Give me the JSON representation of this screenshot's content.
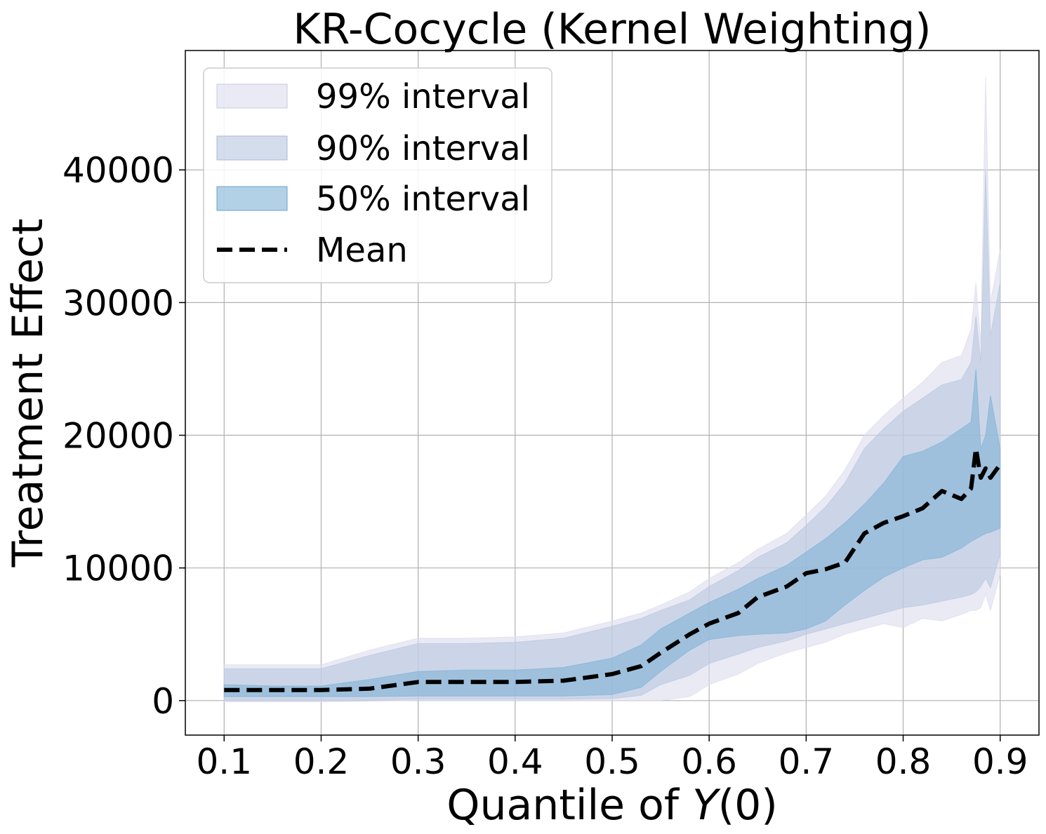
{
  "chart_data": {
    "type": "area",
    "title": "KR-Cocycle (Kernel Weighting)",
    "xlabel_text": "Quantile of ",
    "xlabel_var": "Y",
    "xlabel_suffix": "(0)",
    "ylabel": "Treatment Effect",
    "xlim": [
      0.06,
      0.94
    ],
    "ylim": [
      -2600,
      49000
    ],
    "grid": true,
    "legend_position": "top-left",
    "x_ticks": [
      0.1,
      0.2,
      0.3,
      0.4,
      0.5,
      0.6,
      0.7,
      0.8,
      0.9
    ],
    "x_tick_labels": [
      "0.1",
      "0.2",
      "0.3",
      "0.4",
      "0.5",
      "0.6",
      "0.7",
      "0.8",
      "0.9"
    ],
    "y_ticks": [
      0,
      10000,
      20000,
      30000,
      40000
    ],
    "y_tick_labels": [
      "0",
      "10000",
      "20000",
      "30000",
      "40000"
    ],
    "x": [
      0.1,
      0.15,
      0.2,
      0.25,
      0.3,
      0.35,
      0.4,
      0.45,
      0.5,
      0.53,
      0.55,
      0.58,
      0.6,
      0.63,
      0.65,
      0.68,
      0.7,
      0.72,
      0.74,
      0.76,
      0.78,
      0.8,
      0.82,
      0.84,
      0.86,
      0.87,
      0.875,
      0.88,
      0.885,
      0.89,
      0.9
    ],
    "series": [
      {
        "name": "99% interval",
        "color": "#dcdcee",
        "opacity": 0.6,
        "lower": [
          -100,
          -100,
          -100,
          -50,
          0,
          0,
          0,
          0,
          0,
          0,
          0,
          300,
          1200,
          2000,
          2800,
          3600,
          4000,
          4400,
          5000,
          5400,
          5800,
          5500,
          6200,
          6000,
          6500,
          6800,
          6800,
          7000,
          8000,
          6800,
          9500
        ],
        "upper": [
          2700,
          2700,
          2700,
          3800,
          4700,
          4700,
          4800,
          5100,
          6000,
          6600,
          7200,
          8200,
          9200,
          10400,
          11400,
          12600,
          14000,
          15400,
          17400,
          20000,
          21500,
          22800,
          24000,
          25500,
          26000,
          28000,
          31500,
          27000,
          47000,
          30000,
          34000
        ]
      },
      {
        "name": "90% interval",
        "color": "#b8c6e0",
        "opacity": 0.6,
        "lower": [
          0,
          0,
          0,
          50,
          100,
          100,
          100,
          100,
          150,
          400,
          1200,
          1900,
          2800,
          3500,
          4000,
          4500,
          5000,
          5400,
          5800,
          6200,
          6600,
          7000,
          7200,
          7500,
          7800,
          8000,
          8200,
          8600,
          9200,
          8500,
          11000
        ],
        "upper": [
          2400,
          2400,
          2400,
          3400,
          4300,
          4300,
          4400,
          4700,
          5600,
          6200,
          6800,
          7600,
          8600,
          9800,
          10800,
          11900,
          13200,
          14600,
          16400,
          19000,
          20500,
          21800,
          22800,
          23800,
          24200,
          25500,
          29000,
          25500,
          40000,
          27500,
          31500
        ]
      },
      {
        "name": "50% interval",
        "color": "#7fb2d6",
        "opacity": 0.6,
        "lower": [
          300,
          300,
          300,
          300,
          350,
          350,
          350,
          350,
          450,
          1000,
          2200,
          3800,
          4600,
          4900,
          5000,
          5100,
          5400,
          6000,
          7200,
          8300,
          9300,
          10000,
          10600,
          10800,
          11500,
          12000,
          12200,
          12400,
          12600,
          12700,
          13000
        ],
        "upper": [
          1200,
          1100,
          1100,
          1600,
          2200,
          2300,
          2300,
          2500,
          3200,
          4200,
          5400,
          6600,
          7400,
          8400,
          9200,
          10200,
          11200,
          12200,
          13400,
          14800,
          16400,
          18400,
          18800,
          19500,
          20500,
          21000,
          25000,
          19000,
          20000,
          23000,
          19000
        ]
      }
    ],
    "mean": {
      "name": "Mean",
      "color": "#000000",
      "values": [
        800,
        800,
        800,
        900,
        1400,
        1400,
        1400,
        1500,
        2000,
        2600,
        3600,
        5000,
        5800,
        6600,
        7800,
        8600,
        9600,
        9900,
        10400,
        12600,
        13400,
        13900,
        14500,
        15800,
        15200,
        16000,
        19000,
        16800,
        17500,
        16800,
        17800
      ]
    }
  }
}
